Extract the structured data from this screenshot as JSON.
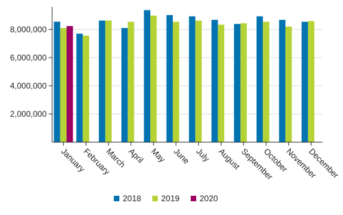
{
  "chart_data": {
    "type": "bar",
    "categories": [
      "January",
      "February",
      "March",
      "April",
      "May",
      "June",
      "July",
      "August",
      "September",
      "October",
      "November",
      "December"
    ],
    "series": [
      {
        "name": "2018",
        "color": "#0073b0",
        "values": [
          8550000,
          7700000,
          8630000,
          8100000,
          9370000,
          9020000,
          8930000,
          8680000,
          8390000,
          8930000,
          8680000,
          8540000
        ]
      },
      {
        "name": "2019",
        "color": "#b5d334",
        "values": [
          8100000,
          7560000,
          8630000,
          8540000,
          8980000,
          8540000,
          8630000,
          8340000,
          8440000,
          8540000,
          8200000,
          8590000
        ]
      },
      {
        "name": "2020",
        "color": "#9c0063",
        "values": [
          8240000,
          null,
          null,
          null,
          null,
          null,
          null,
          null,
          null,
          null,
          null,
          null
        ]
      }
    ],
    "ylim": [
      0,
      9600000
    ],
    "yticks": [
      {
        "value": 2000000,
        "label": "2,000,000"
      },
      {
        "value": 4000000,
        "label": "4,000,000"
      },
      {
        "value": 6000000,
        "label": "6,000,000"
      },
      {
        "value": 8000000,
        "label": "8,000,000"
      }
    ],
    "grid": true,
    "legend": "bottom"
  }
}
